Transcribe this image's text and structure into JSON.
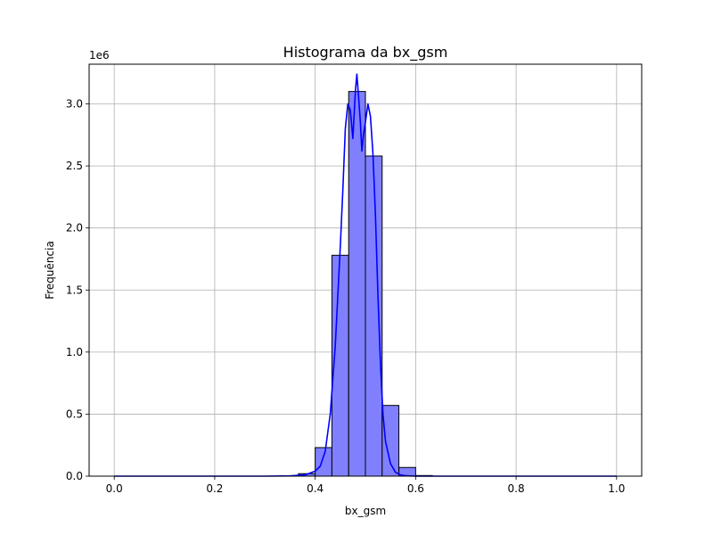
{
  "chart_data": {
    "type": "bar",
    "title": "Histograma da bx_gsm",
    "xlabel": "bx_gsm",
    "ylabel": "Frequência",
    "y_offset_label": "1e6",
    "xlim": [
      -0.05,
      1.05
    ],
    "ylim": [
      0,
      3.32
    ],
    "y_unit_multiplier": 1000000,
    "grid": true,
    "x_ticks": [
      {
        "value": 0.0,
        "label": "0.0"
      },
      {
        "value": 0.2,
        "label": "0.2"
      },
      {
        "value": 0.4,
        "label": "0.4"
      },
      {
        "value": 0.6,
        "label": "0.6"
      },
      {
        "value": 0.8,
        "label": "0.8"
      },
      {
        "value": 1.0,
        "label": "1.0"
      }
    ],
    "y_ticks": [
      {
        "value": 0.0,
        "label": "0.0"
      },
      {
        "value": 0.5,
        "label": "0.5"
      },
      {
        "value": 1.0,
        "label": "1.0"
      },
      {
        "value": 1.5,
        "label": "1.5"
      },
      {
        "value": 2.0,
        "label": "2.0"
      },
      {
        "value": 2.5,
        "label": "2.5"
      },
      {
        "value": 3.0,
        "label": "3.0"
      }
    ],
    "bin_width": 0.0333,
    "bins": [
      {
        "x0": 0.0,
        "value": 0.0
      },
      {
        "x0": 0.0333,
        "value": 0.0
      },
      {
        "x0": 0.0667,
        "value": 0.0
      },
      {
        "x0": 0.1,
        "value": 0.0
      },
      {
        "x0": 0.1333,
        "value": 0.0
      },
      {
        "x0": 0.1667,
        "value": 0.0
      },
      {
        "x0": 0.2,
        "value": 0.0
      },
      {
        "x0": 0.2333,
        "value": 0.0
      },
      {
        "x0": 0.2667,
        "value": 0.0
      },
      {
        "x0": 0.3,
        "value": 0.0
      },
      {
        "x0": 0.3333,
        "value": 0.001
      },
      {
        "x0": 0.3667,
        "value": 0.02
      },
      {
        "x0": 0.4,
        "value": 0.23
      },
      {
        "x0": 0.4333,
        "value": 1.78
      },
      {
        "x0": 0.4667,
        "value": 3.1
      },
      {
        "x0": 0.5,
        "value": 2.58
      },
      {
        "x0": 0.5333,
        "value": 0.57
      },
      {
        "x0": 0.5667,
        "value": 0.07
      },
      {
        "x0": 0.6,
        "value": 0.005
      },
      {
        "x0": 0.6333,
        "value": 0.0
      },
      {
        "x0": 0.6667,
        "value": 0.0
      },
      {
        "x0": 0.7,
        "value": 0.0
      },
      {
        "x0": 0.7333,
        "value": 0.0
      },
      {
        "x0": 0.7667,
        "value": 0.0
      },
      {
        "x0": 0.8,
        "value": 0.0
      },
      {
        "x0": 0.8333,
        "value": 0.0
      },
      {
        "x0": 0.8667,
        "value": 0.0
      },
      {
        "x0": 0.9,
        "value": 0.0
      },
      {
        "x0": 0.9333,
        "value": 0.0
      },
      {
        "x0": 0.9667,
        "value": 0.0
      }
    ],
    "kde_curve": {
      "x": [
        0.0,
        0.1,
        0.2,
        0.3,
        0.35,
        0.38,
        0.4,
        0.41,
        0.42,
        0.43,
        0.44,
        0.45,
        0.455,
        0.46,
        0.465,
        0.47,
        0.475,
        0.48,
        0.483,
        0.486,
        0.49,
        0.493,
        0.496,
        0.5,
        0.505,
        0.51,
        0.515,
        0.52,
        0.525,
        0.53,
        0.535,
        0.54,
        0.55,
        0.56,
        0.57,
        0.58,
        0.6,
        0.65,
        0.7,
        0.8,
        0.9,
        1.0
      ],
      "y": [
        0.0,
        0.0,
        0.0,
        0.0,
        0.002,
        0.01,
        0.04,
        0.08,
        0.2,
        0.5,
        1.05,
        1.85,
        2.3,
        2.8,
        3.0,
        2.95,
        2.72,
        3.1,
        3.24,
        3.08,
        2.85,
        2.62,
        2.75,
        2.85,
        3.0,
        2.9,
        2.6,
        2.1,
        1.45,
        0.9,
        0.5,
        0.28,
        0.1,
        0.03,
        0.01,
        0.003,
        0.0,
        0.0,
        0.0,
        0.0,
        0.0,
        0.0
      ]
    },
    "colors": {
      "bar_fill": "#8080ff",
      "bar_edge": "#000000",
      "kde_line": "#0000ff",
      "grid": "#b0b0b0",
      "axes": "#000000"
    }
  }
}
